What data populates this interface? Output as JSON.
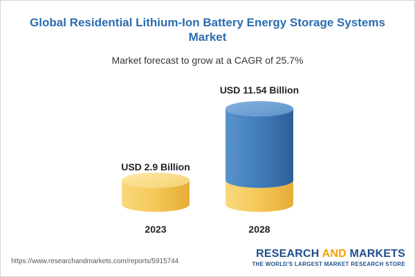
{
  "header": {
    "title": "Global Residential Lithium-Ion Battery Energy Storage Systems Market",
    "subtitle": "Market forecast to grow at a CAGR of 25.7%"
  },
  "chart_data": {
    "type": "bar",
    "categories": [
      "2023",
      "2028"
    ],
    "values": [
      2.9,
      11.54
    ],
    "value_labels": [
      "USD 2.9 Billion",
      "USD 11.54 Billion"
    ],
    "unit": "USD Billion",
    "title": "Global Residential Lithium-Ion Battery Energy Storage Systems Market",
    "subtitle": "Market forecast to grow at a CAGR of 25.7%",
    "colors": {
      "base": "#f6cc63",
      "growth": "#3f78b4"
    },
    "grid": false,
    "legend": "none"
  },
  "footer": {
    "source_url": "https://www.researchandmarkets.com/reports/5915744",
    "logo_part1": "RESEARCH ",
    "logo_part2": "AND",
    "logo_part3": " MARKETS",
    "logo_tagline": "THE WORLD'S LARGEST MARKET RESEARCH STORE"
  }
}
